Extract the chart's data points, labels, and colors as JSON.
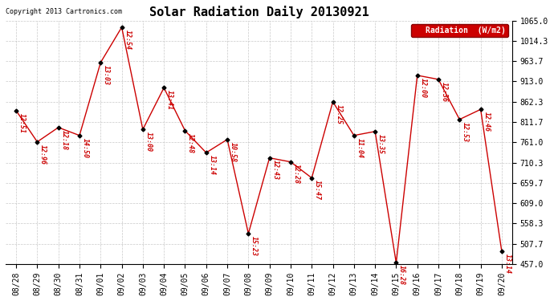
{
  "title": "Solar Radiation Daily 20130921",
  "copyright": "Copyright 2013 Cartronics.com",
  "legend_label": "Radiation  (W/m2)",
  "x_labels": [
    "08/28",
    "08/29",
    "08/30",
    "08/31",
    "09/01",
    "09/02",
    "09/03",
    "09/04",
    "09/05",
    "09/06",
    "09/07",
    "09/08",
    "09/09",
    "09/10",
    "09/11",
    "09/12",
    "09/13",
    "09/14",
    "09/15",
    "09/16",
    "09/17",
    "09/18",
    "09/19",
    "09/20"
  ],
  "y_values": [
    840,
    762,
    798,
    778,
    960,
    1048,
    793,
    897,
    790,
    735,
    768,
    533,
    722,
    712,
    672,
    862,
    778,
    788,
    460,
    928,
    918,
    818,
    843,
    488
  ],
  "time_labels": [
    "12:51",
    "12:96",
    "12:18",
    "14:50",
    "13:03",
    "12:54",
    "13:00",
    "13:41",
    "12:48",
    "13:14",
    "10:58",
    "15:23",
    "12:43",
    "12:28",
    "15:47",
    "12:25",
    "11:04",
    "13:35",
    "16:28",
    "12:00",
    "12:36",
    "12:53",
    "12:46",
    "13:14"
  ],
  "ylim_min": 457.0,
  "ylim_max": 1065.0,
  "yticks": [
    457.0,
    507.7,
    558.3,
    609.0,
    659.7,
    710.3,
    761.0,
    811.7,
    862.3,
    913.0,
    963.7,
    1014.3,
    1065.0
  ],
  "line_color": "#cc0000",
  "marker_color": "#000000",
  "background_color": "#ffffff",
  "grid_color": "#bbbbbb",
  "title_fontsize": 11,
  "tick_fontsize": 7,
  "annotation_fontsize": 6,
  "figwidth": 6.9,
  "figheight": 3.75,
  "dpi": 100
}
